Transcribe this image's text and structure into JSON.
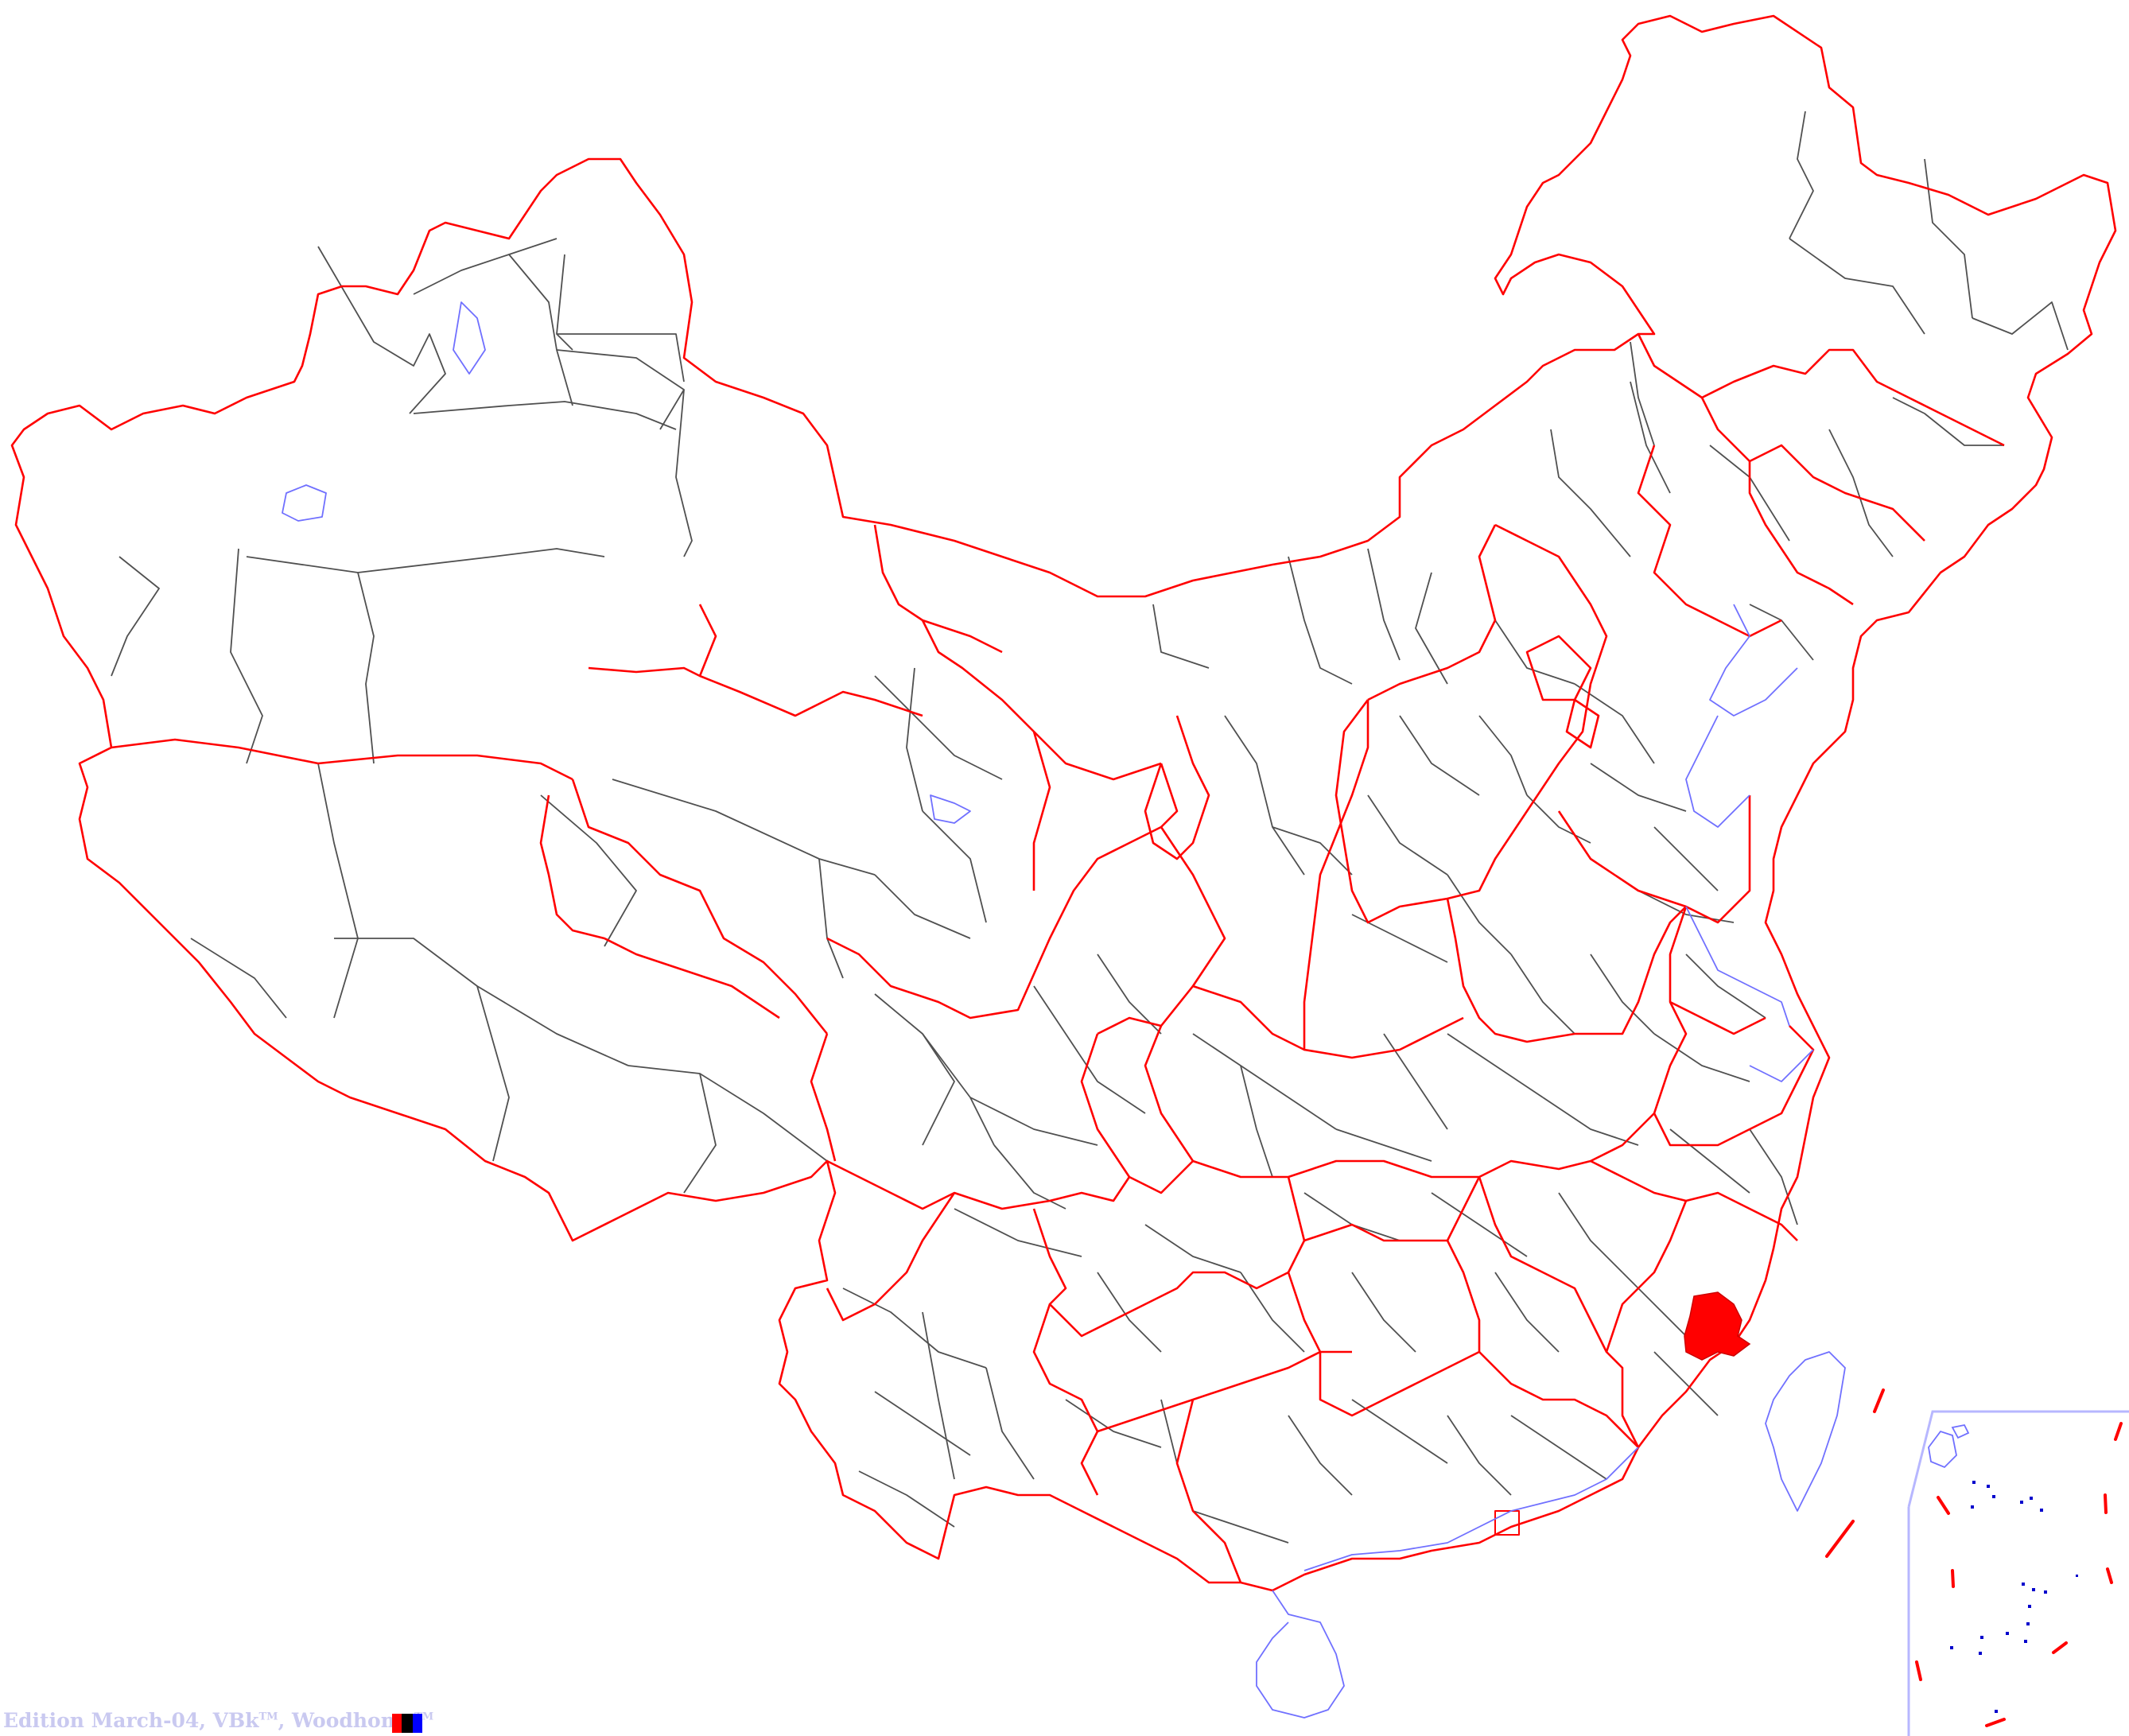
{
  "map": {
    "subject": "Prefecture-level divisions map of China",
    "highlighted_region": "Fuzhou (Fujian)",
    "colors": {
      "background": "#ffffff",
      "province_border": "#ff0000",
      "prefecture_border": "#505050",
      "coastline": "#7070ff",
      "highlight_fill": "#ff0000",
      "inset_frame": "#b7b7ff",
      "islands": "#0000cc",
      "nine_dash_line": "#ff0000"
    }
  },
  "credit": {
    "edition": "Edition March-04, VBk",
    "tm1": "TM",
    "sep": ", Woodhome",
    "tm2": "TM"
  }
}
